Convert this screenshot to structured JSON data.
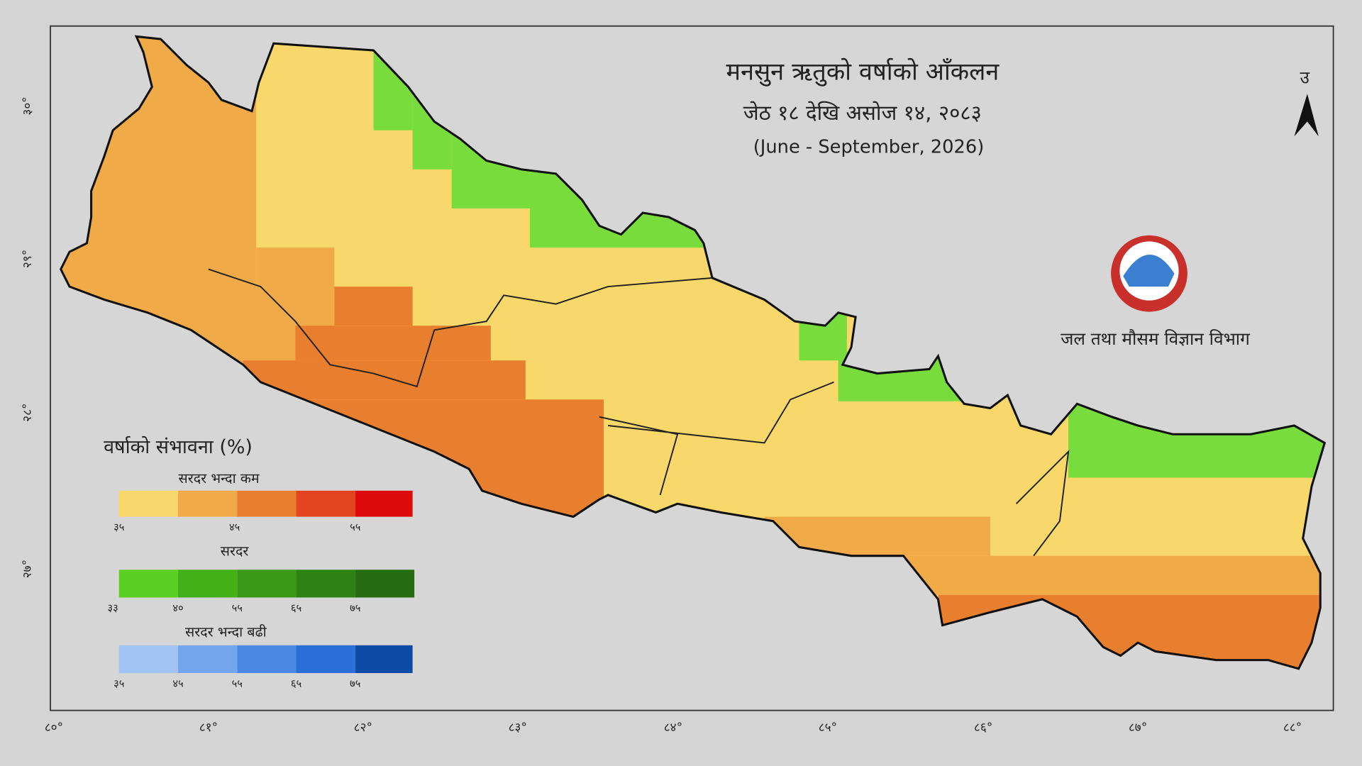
{
  "header": {
    "title": "मनसुन ऋतुको वर्षाको आँकलन",
    "dates": "जेठ १८ देखि असोज १४, २०८३",
    "period": "(June - September, 2026)"
  },
  "agency": "जल तथा मौसम विज्ञान विभाग",
  "north": "उ",
  "axes": {
    "x_labels": [
      "८०°",
      "८१°",
      "८२°",
      "८३°",
      "८४°",
      "८५°",
      "८६°",
      "८७°",
      "८८°"
    ],
    "y_labels": [
      "३०°",
      "२९°",
      "२८°",
      "२७°"
    ]
  },
  "legend": {
    "title": "वर्षाको संभावना (%)",
    "below": {
      "label": "सरदर भन्दा कम",
      "ticks": [
        "३५",
        "४५",
        "५५"
      ]
    },
    "normal": {
      "label": "सरदर",
      "ticks": [
        "३३",
        "४०",
        "५५",
        "६५",
        "७५"
      ]
    },
    "above": {
      "label": "सरदर भन्दा बढी",
      "ticks": [
        "३५",
        "४५",
        "५५",
        "६५",
        "७५"
      ]
    }
  }
}
